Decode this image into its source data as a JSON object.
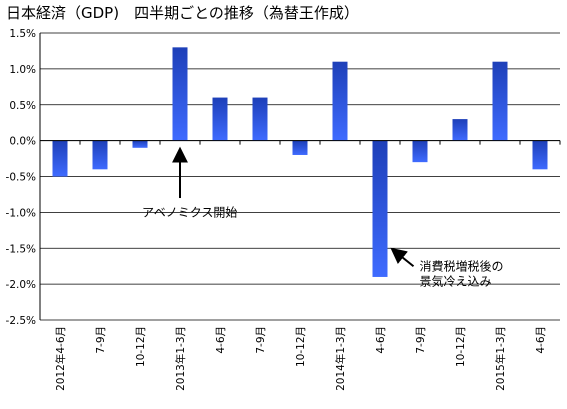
{
  "chart_data": {
    "type": "bar",
    "title": "日本経済（GDP)　四半期ごとの推移（為替王作成）",
    "categories": [
      "2012年4-6月",
      "7-9月",
      "10-12月",
      "2013年1-3月",
      "4-6月",
      "7-9月",
      "10-12月",
      "2014年1-3月",
      "4-6月",
      "7-9月",
      "10-12月",
      "2015年1-3月",
      "4-6月"
    ],
    "values": [
      -0.5,
      -0.4,
      -0.1,
      1.3,
      0.6,
      0.6,
      -0.2,
      1.1,
      -1.9,
      -0.3,
      0.3,
      1.1,
      -0.4
    ],
    "ylim": [
      -2.5,
      1.5
    ],
    "yticks": [
      "1.5%",
      "1.0%",
      "0.5%",
      "0.0%",
      "-0.5%",
      "-1.0%",
      "-1.5%",
      "-2.0%",
      "-2.5%"
    ],
    "ytick_values": [
      1.5,
      1.0,
      0.5,
      0.0,
      -0.5,
      -1.0,
      -1.5,
      -2.0,
      -2.5
    ],
    "gridlines": true,
    "bar_color": "#2f5cf0",
    "annotations": [
      {
        "lines": [
          "アベノミクス開始"
        ],
        "category_index": 3
      },
      {
        "lines": [
          "消費税増税後の",
          "景気冷え込み"
        ],
        "category_index": 8
      }
    ]
  }
}
